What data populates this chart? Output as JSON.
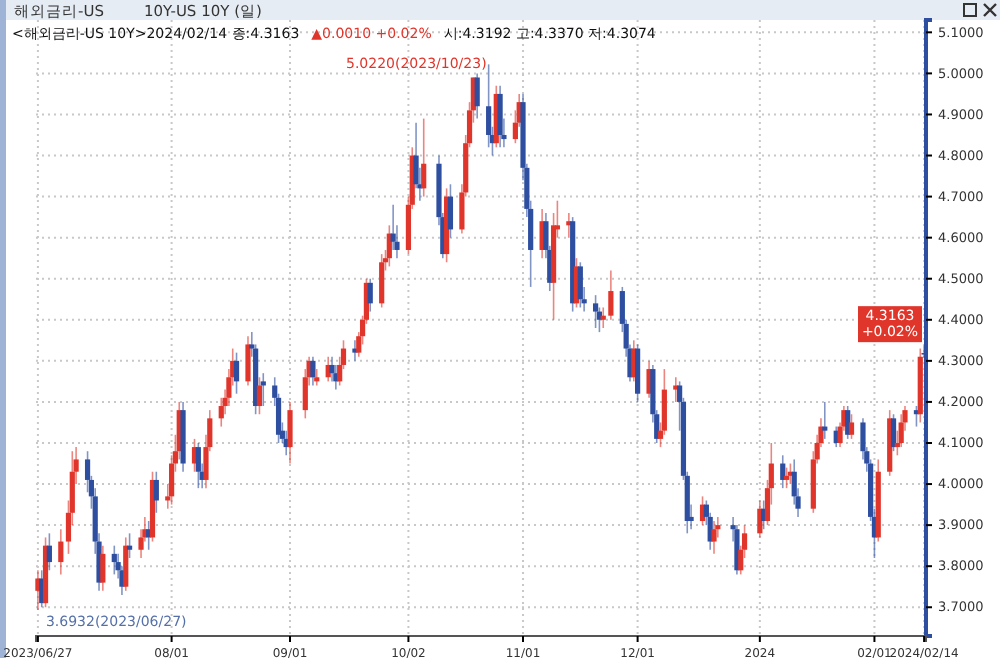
{
  "chart_data": {
    "type": "candlestick",
    "title": "해외금리-US",
    "subtitle": "10Y-US 10Y (일)",
    "annotations": [
      "<해외금리-US 10Y>2024/02/14 종:4.3163",
      "▲0.0010 +0.02%",
      "시:4.3192 고:4.3370 저:4.3074",
      {
        "text": "5.0220(2023/10/23)",
        "x": "2023-10-23",
        "y": 5.022
      },
      {
        "text": "3.6932(2023/06/27)",
        "x": "2023-06-27",
        "y": 3.6932
      },
      {
        "text": "4.3163 +0.02%",
        "x": "2024-02-14",
        "y": 4.3163
      }
    ],
    "colors": [
      "#e0352b",
      "#2e4fa0",
      "#e0352b",
      "#2e4fa0",
      "#e0352b",
      "#e0352b",
      "#e0352b",
      "#e0352b",
      "#2e4fa0",
      "#2e4fa0",
      "#2e4fa0",
      "#2e4fa0",
      "#e0352b",
      "#2e4fa0",
      "#2e4fa0",
      "#2e4fa0",
      "#e0352b",
      "#2e4fa0",
      "#e0352b",
      "#e0352b",
      "#2e4fa0",
      "#e0352b",
      "#2e4fa0",
      "#e0352b",
      "#e0352b",
      "#e0352b",
      "#e0352b",
      "#2e4fa0",
      "#e0352b",
      "#2e4fa0",
      "#2e4fa0",
      "#e0352b",
      "#e0352b",
      "#e0352b",
      "#e0352b",
      "#e0352b",
      "#e0352b",
      "#2e4fa0",
      "#e0352b",
      "#2e4fa0",
      "#2e4fa0",
      "#e0352b",
      "#2e4fa0",
      "#2e4fa0",
      "#2e4fa0",
      "#2e4fa0",
      "#2e4fa0",
      "#e0352b",
      "#e0352b",
      "#e0352b",
      "#2e4fa0",
      "#e0352b",
      "#e0352b",
      "#2e4fa0",
      "#2e4fa0",
      "#e0352b",
      "#e0352b",
      "#2e4fa0",
      "#e0352b",
      "#e0352b",
      "#e0352b",
      "#2e4fa0",
      "#e0352b",
      "#e0352b",
      "#e0352b",
      "#2e4fa0",
      "#2e4fa0",
      "#e0352b",
      "#e0352b",
      "#2e4fa0",
      "#2e4fa0",
      "#e0352b",
      "#2e4fa0",
      "#2e4fa0",
      "#e0352b",
      "#2e4fa0",
      "#e0352b",
      "#e0352b",
      "#e0352b",
      "#e0352b",
      "#2e4fa0",
      "#2e4fa0",
      "#2e4fa0",
      "#e0352b",
      "#2e4fa0",
      "#2e4fa0",
      "#e0352b",
      "#e0352b",
      "#2e4fa0",
      "#2e4fa0",
      "#2e4fa0",
      "#e0352b",
      "#2e4fa0",
      "#2e4fa0",
      "#e0352b",
      "#e0352b",
      "#e0352b",
      "#2e4fa0",
      "#e0352b",
      "#2e4fa0",
      "#2e4fa0",
      "#2e4fa0",
      "#2e4fa0",
      "#e0352b",
      "#e0352b",
      "#2e4fa0",
      "#2e4fa0",
      "#2e4fa0",
      "#e0352b",
      "#2e4fa0",
      "#e0352b",
      "#2e4fa0",
      "#2e4fa0",
      "#e0352b",
      "#e0352b",
      "#e0352b",
      "#2e4fa0",
      "#2e4fa0",
      "#2e4fa0",
      "#2e4fa0",
      "#e0352b",
      "#2e4fa0",
      "#2e4fa0",
      "#e0352b",
      "#e0352b",
      "#2e4fa0",
      "#2e4fa0",
      "#e0352b",
      "#e0352b",
      "#e0352b",
      "#2e4fa0",
      "#e0352b",
      "#e0352b",
      "#2e4fa0",
      "#e0352b",
      "#e0352b",
      "#2e4fa0",
      "#2e4fa0",
      "#e0352b",
      "#e0352b",
      "#e0352b",
      "#2e4fa0",
      "#2e4fa0",
      "#e0352b",
      "#e0352b",
      "#2e4fa0",
      "#e0352b",
      "#2e4fa0",
      "#2e4fa0",
      "#2e4fa0",
      "#2e4fa0",
      "#e0352b",
      "#e0352b",
      "#2e4fa0",
      "#e0352b",
      "#e0352b",
      "#e0352b",
      "#2e4fa0",
      "#e0352b",
      "#2e4fa0"
    ],
    "x": [
      "2023-06-27",
      "2023-06-28",
      "2023-06-29",
      "2023-06-30",
      "2023-07-03",
      "2023-07-05",
      "2023-07-06",
      "2023-07-07",
      "2023-07-10",
      "2023-07-11",
      "2023-07-12",
      "2023-07-13",
      "2023-07-14",
      "2023-07-17",
      "2023-07-18",
      "2023-07-19",
      "2023-07-20",
      "2023-07-21",
      "2023-07-24",
      "2023-07-25",
      "2023-07-26",
      "2023-07-27",
      "2023-07-28",
      "2023-07-31",
      "2023-08-01",
      "2023-08-02",
      "2023-08-03",
      "2023-08-04",
      "2023-08-07",
      "2023-08-08",
      "2023-08-09",
      "2023-08-10",
      "2023-08-11",
      "2023-08-14",
      "2023-08-15",
      "2023-08-16",
      "2023-08-17",
      "2023-08-18",
      "2023-08-21",
      "2023-08-22",
      "2023-08-23",
      "2023-08-24",
      "2023-08-25",
      "2023-08-28",
      "2023-08-29",
      "2023-08-30",
      "2023-08-31",
      "2023-09-01",
      "2023-09-05",
      "2023-09-06",
      "2023-09-07",
      "2023-09-08",
      "2023-09-11",
      "2023-09-12",
      "2023-09-13",
      "2023-09-14",
      "2023-09-15",
      "2023-09-18",
      "2023-09-19",
      "2023-09-20",
      "2023-09-21",
      "2023-09-22",
      "2023-09-25",
      "2023-09-26",
      "2023-09-27",
      "2023-09-28",
      "2023-09-29",
      "2023-10-02",
      "2023-10-03",
      "2023-10-04",
      "2023-10-05",
      "2023-10-06",
      "2023-10-10",
      "2023-10-11",
      "2023-10-12",
      "2023-10-13",
      "2023-10-16",
      "2023-10-17",
      "2023-10-18",
      "2023-10-19",
      "2023-10-20",
      "2023-10-23",
      "2023-10-24",
      "2023-10-25",
      "2023-10-26",
      "2023-10-27",
      "2023-10-30",
      "2023-10-31",
      "2023-11-01",
      "2023-11-02",
      "2023-11-03",
      "2023-11-06",
      "2023-11-07",
      "2023-11-08",
      "2023-11-09",
      "2023-11-10",
      "2023-11-13",
      "2023-11-14",
      "2023-11-15",
      "2023-11-16",
      "2023-11-17",
      "2023-11-20",
      "2023-11-21",
      "2023-11-22",
      "2023-11-24",
      "2023-11-27",
      "2023-11-28",
      "2023-11-29",
      "2023-11-30",
      "2023-12-01",
      "2023-12-04",
      "2023-12-05",
      "2023-12-06",
      "2023-12-07",
      "2023-12-08",
      "2023-12-11",
      "2023-12-12",
      "2023-12-13",
      "2023-12-14",
      "2023-12-15",
      "2023-12-18",
      "2023-12-19",
      "2023-12-20",
      "2023-12-21",
      "2023-12-22",
      "2023-12-26",
      "2023-12-27",
      "2023-12-28",
      "2023-12-29",
      "2024-01-02",
      "2024-01-03",
      "2024-01-04",
      "2024-01-05",
      "2024-01-08",
      "2024-01-09",
      "2024-01-10",
      "2024-01-11",
      "2024-01-12",
      "2024-01-16",
      "2024-01-17",
      "2024-01-18",
      "2024-01-19",
      "2024-01-22",
      "2024-01-23",
      "2024-01-24",
      "2024-01-25",
      "2024-01-26",
      "2024-01-29",
      "2024-01-30",
      "2024-01-31",
      "2024-02-01",
      "2024-02-02",
      "2024-02-05",
      "2024-02-06",
      "2024-02-07",
      "2024-02-08",
      "2024-02-09",
      "2024-02-12",
      "2024-02-13",
      "2024-02-14"
    ],
    "ohlc": [
      [
        3.74,
        3.79,
        3.6932,
        3.77
      ],
      [
        3.77,
        3.79,
        3.7,
        3.71
      ],
      [
        3.71,
        3.87,
        3.7,
        3.85
      ],
      [
        3.85,
        3.88,
        3.79,
        3.81
      ],
      [
        3.81,
        3.89,
        3.78,
        3.86
      ],
      [
        3.86,
        3.96,
        3.83,
        3.93
      ],
      [
        3.93,
        4.08,
        3.9,
        4.03
      ],
      [
        4.03,
        4.09,
        4.0,
        4.06
      ],
      [
        4.06,
        4.08,
        3.98,
        4.01
      ],
      [
        4.01,
        4.02,
        3.94,
        3.97
      ],
      [
        3.97,
        3.99,
        3.83,
        3.86
      ],
      [
        3.86,
        3.88,
        3.74,
        3.76
      ],
      [
        3.76,
        3.85,
        3.74,
        3.83
      ],
      [
        3.83,
        3.85,
        3.78,
        3.81
      ],
      [
        3.81,
        3.83,
        3.77,
        3.79
      ],
      [
        3.79,
        3.8,
        3.73,
        3.75
      ],
      [
        3.75,
        3.87,
        3.74,
        3.85
      ],
      [
        3.85,
        3.88,
        3.82,
        3.84
      ],
      [
        3.84,
        3.89,
        3.82,
        3.87
      ],
      [
        3.87,
        3.92,
        3.86,
        3.89
      ],
      [
        3.89,
        3.91,
        3.84,
        3.87
      ],
      [
        3.87,
        4.03,
        3.86,
        4.01
      ],
      [
        4.01,
        4.03,
        3.93,
        3.96
      ],
      [
        3.96,
        4.0,
        3.94,
        3.97
      ],
      [
        3.97,
        4.07,
        3.95,
        4.05
      ],
      [
        4.05,
        4.12,
        4.03,
        4.08
      ],
      [
        4.08,
        4.2,
        4.06,
        4.18
      ],
      [
        4.18,
        4.2,
        4.03,
        4.05
      ],
      [
        4.05,
        4.11,
        4.03,
        4.09
      ],
      [
        4.09,
        4.1,
        3.99,
        4.03
      ],
      [
        4.03,
        4.05,
        3.99,
        4.01
      ],
      [
        4.01,
        4.12,
        3.99,
        4.09
      ],
      [
        4.09,
        4.18,
        4.08,
        4.16
      ],
      [
        4.16,
        4.21,
        4.14,
        4.19
      ],
      [
        4.19,
        4.23,
        4.17,
        4.21
      ],
      [
        4.21,
        4.28,
        4.19,
        4.26
      ],
      [
        4.26,
        4.33,
        4.24,
        4.3
      ],
      [
        4.3,
        4.32,
        4.22,
        4.25
      ],
      [
        4.25,
        4.36,
        4.24,
        4.34
      ],
      [
        4.34,
        4.37,
        4.31,
        4.33
      ],
      [
        4.33,
        4.34,
        4.17,
        4.19
      ],
      [
        4.19,
        4.26,
        4.17,
        4.24
      ],
      [
        4.25,
        4.27,
        4.19,
        4.24
      ],
      [
        4.24,
        4.26,
        4.19,
        4.21
      ],
      [
        4.21,
        4.22,
        4.1,
        4.12
      ],
      [
        4.13,
        4.15,
        4.1,
        4.11
      ],
      [
        4.11,
        4.13,
        4.07,
        4.09
      ],
      [
        4.09,
        4.2,
        4.05,
        4.18
      ],
      [
        4.18,
        4.28,
        4.16,
        4.26
      ],
      [
        4.26,
        4.31,
        4.24,
        4.3
      ],
      [
        4.3,
        4.31,
        4.24,
        4.26
      ],
      [
        4.25,
        4.28,
        4.24,
        4.26
      ],
      [
        4.26,
        4.31,
        4.25,
        4.29
      ],
      [
        4.29,
        4.31,
        4.25,
        4.27
      ],
      [
        4.27,
        4.29,
        4.23,
        4.25
      ],
      [
        4.25,
        4.31,
        4.24,
        4.29
      ],
      [
        4.29,
        4.35,
        4.28,
        4.33
      ],
      [
        4.33,
        4.35,
        4.3,
        4.32
      ],
      [
        4.32,
        4.37,
        4.31,
        4.36
      ],
      [
        4.36,
        4.41,
        4.34,
        4.4
      ],
      [
        4.4,
        4.5,
        4.39,
        4.49
      ],
      [
        4.49,
        4.5,
        4.42,
        4.44
      ],
      [
        4.44,
        4.56,
        4.43,
        4.54
      ],
      [
        4.54,
        4.57,
        4.52,
        4.55
      ],
      [
        4.55,
        4.63,
        4.53,
        4.61
      ],
      [
        4.61,
        4.68,
        4.57,
        4.59
      ],
      [
        4.59,
        4.63,
        4.55,
        4.57
      ],
      [
        4.57,
        4.7,
        4.56,
        4.68
      ],
      [
        4.68,
        4.82,
        4.67,
        4.8
      ],
      [
        4.8,
        4.88,
        4.72,
        4.73
      ],
      [
        4.73,
        4.77,
        4.69,
        4.72
      ],
      [
        4.72,
        4.89,
        4.7,
        4.78
      ],
      [
        4.78,
        4.8,
        4.63,
        4.65
      ],
      [
        4.65,
        4.66,
        4.55,
        4.56
      ],
      [
        4.56,
        4.72,
        4.54,
        4.7
      ],
      [
        4.7,
        4.73,
        4.6,
        4.62
      ],
      [
        4.62,
        4.73,
        4.61,
        4.71
      ],
      [
        4.71,
        4.85,
        4.7,
        4.83
      ],
      [
        4.83,
        4.93,
        4.82,
        4.91
      ],
      [
        4.91,
        4.99,
        4.88,
        4.99
      ],
      [
        4.99,
        5.0,
        4.89,
        4.92
      ],
      [
        4.92,
        5.022,
        4.82,
        4.85
      ],
      [
        4.85,
        4.87,
        4.8,
        4.83
      ],
      [
        4.83,
        4.97,
        4.82,
        4.95
      ],
      [
        4.95,
        4.97,
        4.82,
        4.85
      ],
      [
        4.85,
        4.89,
        4.82,
        4.84
      ],
      [
        4.84,
        4.91,
        4.83,
        4.88
      ],
      [
        4.88,
        4.95,
        4.87,
        4.93
      ],
      [
        4.93,
        4.95,
        4.74,
        4.77
      ],
      [
        4.77,
        4.78,
        4.65,
        4.67
      ],
      [
        4.67,
        4.69,
        4.48,
        4.57
      ],
      [
        4.57,
        4.67,
        4.55,
        4.64
      ],
      [
        4.64,
        4.66,
        4.55,
        4.57
      ],
      [
        4.57,
        4.58,
        4.47,
        4.49
      ],
      [
        4.49,
        4.66,
        4.4,
        4.63
      ],
      [
        4.62,
        4.69,
        4.6,
        4.63
      ],
      [
        4.63,
        4.66,
        4.6,
        4.64
      ],
      [
        4.64,
        4.65,
        4.42,
        4.44
      ],
      [
        4.44,
        4.55,
        4.43,
        4.53
      ],
      [
        4.53,
        4.54,
        4.43,
        4.45
      ],
      [
        4.45,
        4.48,
        4.42,
        4.44
      ],
      [
        4.44,
        4.46,
        4.38,
        4.42
      ],
      [
        4.42,
        4.43,
        4.37,
        4.4
      ],
      [
        4.4,
        4.43,
        4.38,
        4.41
      ],
      [
        4.41,
        4.52,
        4.4,
        4.47
      ],
      [
        4.47,
        4.48,
        4.37,
        4.39
      ],
      [
        4.39,
        4.4,
        4.31,
        4.33
      ],
      [
        4.33,
        4.34,
        4.25,
        4.26
      ],
      [
        4.26,
        4.35,
        4.25,
        4.33
      ],
      [
        4.33,
        4.34,
        4.2,
        4.22
      ],
      [
        4.22,
        4.3,
        4.21,
        4.28
      ],
      [
        4.28,
        4.29,
        4.15,
        4.17
      ],
      [
        4.17,
        4.18,
        4.1,
        4.11
      ],
      [
        4.11,
        4.15,
        4.09,
        4.13
      ],
      [
        4.13,
        4.28,
        4.12,
        4.23
      ],
      [
        4.23,
        4.26,
        4.2,
        4.24
      ],
      [
        4.24,
        4.25,
        4.13,
        4.2
      ],
      [
        4.2,
        4.21,
        4.01,
        4.02
      ],
      [
        4.02,
        4.03,
        3.88,
        3.91
      ],
      [
        3.92,
        3.95,
        3.89,
        3.91
      ],
      [
        3.91,
        3.97,
        3.9,
        3.95
      ],
      [
        3.95,
        3.96,
        3.9,
        3.92
      ],
      [
        3.92,
        3.93,
        3.84,
        3.86
      ],
      [
        3.86,
        3.91,
        3.83,
        3.89
      ],
      [
        3.89,
        3.92,
        3.87,
        3.9
      ],
      [
        3.9,
        3.92,
        3.86,
        3.89
      ],
      [
        3.89,
        3.9,
        3.78,
        3.79
      ],
      [
        3.79,
        3.85,
        3.78,
        3.84
      ],
      [
        3.84,
        3.9,
        3.82,
        3.88
      ],
      [
        3.88,
        3.96,
        3.87,
        3.94
      ],
      [
        3.94,
        3.96,
        3.89,
        3.91
      ],
      [
        3.91,
        4.01,
        3.9,
        3.99
      ],
      [
        3.99,
        4.1,
        3.95,
        4.05
      ],
      [
        4.05,
        4.07,
        3.99,
        4.01
      ],
      [
        4.01,
        4.04,
        3.99,
        4.02
      ],
      [
        4.02,
        4.05,
        4.0,
        4.03
      ],
      [
        4.03,
        4.06,
        3.95,
        3.97
      ],
      [
        3.97,
        3.99,
        3.92,
        3.94
      ],
      [
        3.94,
        4.08,
        3.93,
        4.06
      ],
      [
        4.06,
        4.12,
        4.05,
        4.1
      ],
      [
        4.1,
        4.16,
        4.09,
        4.14
      ],
      [
        4.14,
        4.2,
        4.11,
        4.13
      ],
      [
        4.13,
        4.14,
        4.09,
        4.1
      ],
      [
        4.1,
        4.15,
        4.09,
        4.14
      ],
      [
        4.14,
        4.19,
        4.13,
        4.18
      ],
      [
        4.18,
        4.19,
        4.11,
        4.12
      ],
      [
        4.12,
        4.17,
        4.11,
        4.15
      ],
      [
        4.15,
        4.16,
        4.06,
        4.08
      ],
      [
        4.08,
        4.09,
        4.03,
        4.05
      ],
      [
        4.05,
        4.06,
        3.91,
        3.92
      ],
      [
        3.92,
        3.94,
        3.82,
        3.87
      ],
      [
        3.87,
        4.06,
        3.86,
        4.03
      ],
      [
        4.03,
        4.18,
        4.02,
        4.16
      ],
      [
        4.16,
        4.17,
        4.08,
        4.09
      ],
      [
        4.09,
        4.13,
        4.07,
        4.1
      ],
      [
        4.1,
        4.17,
        4.09,
        4.15
      ],
      [
        4.15,
        4.19,
        4.13,
        4.18
      ],
      [
        4.18,
        4.19,
        4.14,
        4.17
      ],
      [
        4.17,
        4.33,
        4.15,
        4.31
      ],
      [
        4.3192,
        4.337,
        4.3074,
        4.3163
      ]
    ],
    "xlim": [
      "2023-06-26T12:00",
      "2024-02-14T12:00"
    ],
    "xticks": [
      {
        "value": "2023-06-27",
        "label": "2023/06/27"
      },
      {
        "value": "2023-08-01",
        "label": "08/01"
      },
      {
        "value": "2023-09-01",
        "label": "09/01"
      },
      {
        "value": "2023-10-02",
        "label": "10/02"
      },
      {
        "value": "2023-11-01",
        "label": "11/01"
      },
      {
        "value": "2023-12-01",
        "label": "12/01"
      },
      {
        "value": "2024-01-02",
        "label": "2024"
      },
      {
        "value": "2024-02-01",
        "label": "02/01"
      },
      {
        "value": "2024-02-14",
        "label": "2024/02/14"
      }
    ],
    "ylim": [
      3.63,
      5.13
    ],
    "yticks": [
      {
        "value": 3.7,
        "label": "3.7000"
      },
      {
        "value": 3.8,
        "label": "3.8000"
      },
      {
        "value": 3.9,
        "label": "3.9000"
      },
      {
        "value": 4.0,
        "label": "4.0000"
      },
      {
        "value": 4.1,
        "label": "4.1000"
      },
      {
        "value": 4.2,
        "label": "4.2000"
      },
      {
        "value": 4.3,
        "label": "4.3000"
      },
      {
        "value": 4.4,
        "label": "4.4000"
      },
      {
        "value": 4.5,
        "label": "4.5000"
      },
      {
        "value": 4.6,
        "label": "4.6000"
      },
      {
        "value": 4.7,
        "label": "4.7000"
      },
      {
        "value": 4.8,
        "label": "4.8000"
      },
      {
        "value": 4.9,
        "label": "4.9000"
      },
      {
        "value": 5.0,
        "label": "5.0000"
      },
      {
        "value": 5.1,
        "label": "5.1000"
      }
    ],
    "grid": true
  }
}
